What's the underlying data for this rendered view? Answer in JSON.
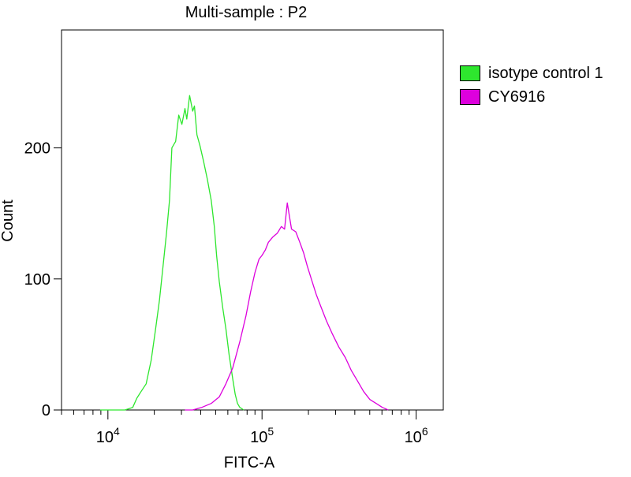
{
  "chart_data": {
    "type": "line",
    "title": "Multi-sample : P2",
    "xlabel": "FITC-A",
    "ylabel": "Count",
    "x_scale": "log",
    "xlim": [
      5000,
      1500000
    ],
    "ylim": [
      0,
      290
    ],
    "x_ticks": [
      {
        "value": 10000,
        "base": "10",
        "exp": "4"
      },
      {
        "value": 100000,
        "base": "10",
        "exp": "5"
      },
      {
        "value": 1000000,
        "base": "10",
        "exp": "6"
      }
    ],
    "y_ticks": [
      0,
      100,
      200
    ],
    "grid": false,
    "legend_position": "right",
    "series": [
      {
        "name": "isotype control 1",
        "color": "#2ee62e",
        "x": [
          8900,
          10800,
          12900,
          14500,
          15400,
          16400,
          17700,
          19100,
          20400,
          21600,
          22900,
          24000,
          25100,
          26000,
          27500,
          28800,
          30200,
          31600,
          32500,
          33900,
          35500,
          36400,
          37800,
          39500,
          41700,
          44200,
          46800,
          49000,
          50700,
          52800,
          55600,
          58300,
          61200,
          64500,
          67000,
          69300,
          71700,
          76200
        ],
        "y": [
          0,
          0,
          0,
          2,
          9,
          14,
          20,
          38,
          62,
          84,
          112,
          135,
          160,
          200,
          205,
          225,
          218,
          230,
          222,
          240,
          228,
          232,
          210,
          202,
          190,
          176,
          160,
          140,
          118,
          98,
          78,
          62,
          42,
          24,
          12,
          5,
          2,
          0
        ]
      },
      {
        "name": "CY6916",
        "color": "#dd00dd",
        "x": [
          31600,
          35500,
          40700,
          46800,
          52800,
          58300,
          64500,
          71700,
          78700,
          84300,
          90000,
          95500,
          100000,
          105000,
          110000,
          117500,
          125900,
          133400,
          140000,
          145800,
          155300,
          165500,
          175800,
          186000,
          196500,
          208900,
          225000,
          242500,
          262000,
          286000,
          315000,
          347000,
          380000,
          417000,
          457000,
          501000,
          550000,
          603000,
          660000
        ],
        "y": [
          0,
          0,
          2,
          5,
          10,
          20,
          32,
          52,
          72,
          90,
          105,
          115,
          118,
          122,
          128,
          132,
          135,
          140,
          138,
          158,
          138,
          136,
          128,
          120,
          110,
          100,
          88,
          78,
          68,
          58,
          48,
          40,
          30,
          22,
          14,
          8,
          5,
          2,
          0
        ]
      }
    ]
  }
}
